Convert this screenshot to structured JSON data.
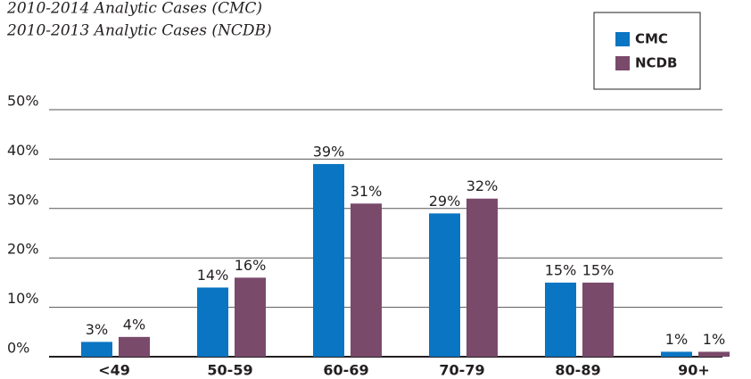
{
  "chart_data": {
    "type": "bar",
    "titles": [
      "2010-2014 Analytic Cases (CMC)",
      "2010-2013 Analytic Cases (NCDB)"
    ],
    "categories": [
      "<49",
      "50-59",
      "60-69",
      "70-79",
      "80-89",
      "90+"
    ],
    "series": [
      {
        "name": "CMC",
        "color": "#0a75c2",
        "values": [
          3,
          14,
          39,
          29,
          15,
          1
        ],
        "value_labels": [
          "3%",
          "14%",
          "39%",
          "29%",
          "15%",
          "1%"
        ]
      },
      {
        "name": "NCDB",
        "color": "#7a4a6b",
        "values": [
          4,
          16,
          31,
          32,
          15,
          1
        ],
        "value_labels": [
          "4%",
          "16%",
          "31%",
          "32%",
          "15%",
          "1%"
        ]
      }
    ],
    "ylim": [
      0,
      50
    ],
    "yticks": [
      {
        "value": 0,
        "label": "0%"
      },
      {
        "value": 10,
        "label": "10%"
      },
      {
        "value": 20,
        "label": "20%"
      },
      {
        "value": 30,
        "label": "30%"
      },
      {
        "value": 40,
        "label": "40%"
      },
      {
        "value": 50,
        "label": "50%"
      }
    ],
    "grid": true,
    "legend": "top-right"
  }
}
